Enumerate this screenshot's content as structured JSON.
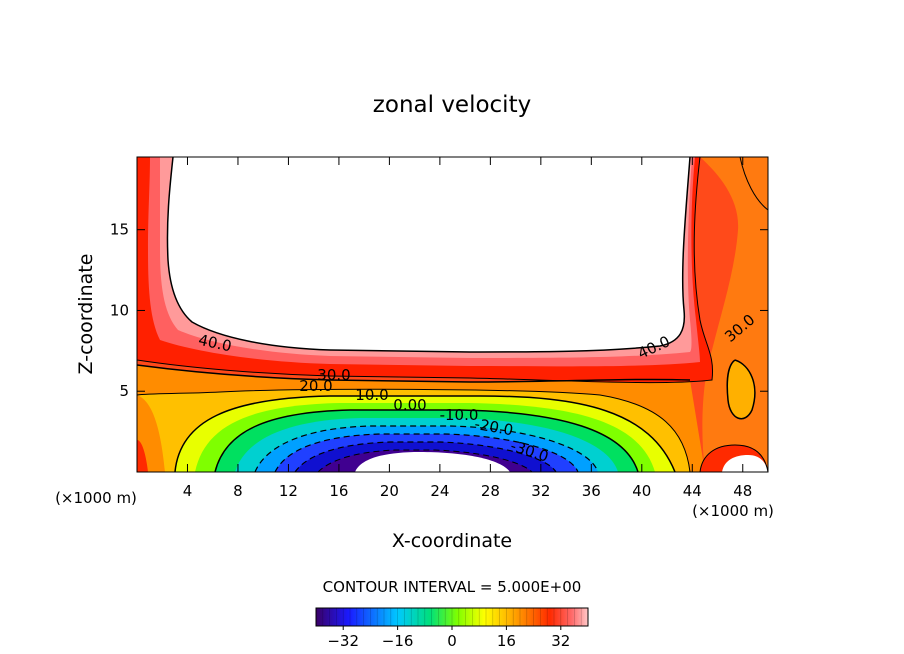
{
  "chart_data": {
    "type": "heatmap",
    "title": "zonal velocity",
    "xlabel": "X-coordinate",
    "ylabel": "Z-coordinate",
    "x_unit_label": "(×1000 m)",
    "x_unit_label_right": "(×1000 m)",
    "xlim": [
      0,
      50
    ],
    "ylim": [
      0,
      19.5
    ],
    "xticks": [
      4,
      8,
      12,
      16,
      20,
      24,
      28,
      32,
      36,
      40,
      44,
      48
    ],
    "yticks": [
      5,
      10,
      15
    ],
    "contour_interval_text": "CONTOUR INTERVAL = 5.000E+00",
    "contour_interval": 5,
    "colorbar": {
      "range": [
        -40,
        40
      ],
      "ticks": [
        -32,
        -16,
        0,
        16,
        32
      ],
      "colormap": [
        "#3a0066",
        "#1a1aff",
        "#00c8ff",
        "#00e07a",
        "#7fff00",
        "#ffff00",
        "#ff9a00",
        "#ff2a00",
        "#ff6a6a",
        "#ffc8c8"
      ]
    },
    "contour_labels": [
      "40.0",
      "30.0",
      "20.0",
      "10.0",
      "0.00",
      "-10.0",
      "-20.0",
      "-30.0",
      "40.0",
      "30.0"
    ],
    "field_summary": {
      "upper_region_value": "above 40 (blank)",
      "jet_core_min_near_x": 24,
      "jet_core_min_value": -40,
      "jet_core_height": 0.5
    }
  }
}
